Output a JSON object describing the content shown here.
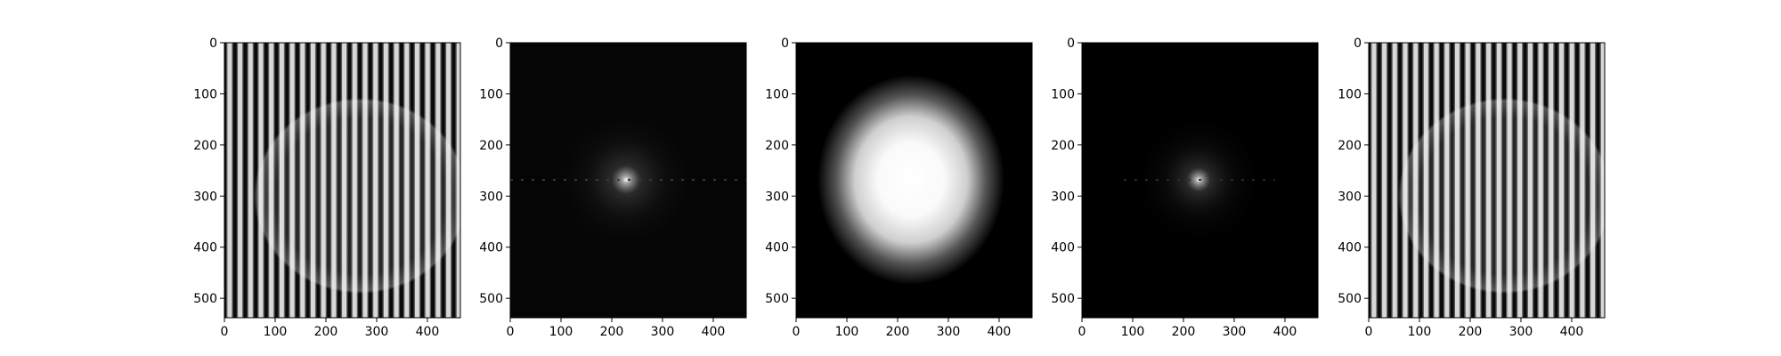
{
  "figure": {
    "background": "#ffffff",
    "panels": [
      {
        "name": "sinusoidal-stripe-image",
        "description_keyword": "vertical stripes with bright circle"
      },
      {
        "name": "fft-magnitude-spectrum",
        "description_keyword": "log spectrum"
      },
      {
        "name": "gaussian-filter-mask",
        "description_keyword": "gaussian blob"
      },
      {
        "name": "filtered-spectrum",
        "description_keyword": "masked spectrum"
      },
      {
        "name": "reconstructed-image",
        "description_keyword": "vertical stripes with bright circle"
      }
    ]
  },
  "axes": {
    "x_ticks": [
      "0",
      "100",
      "200",
      "300",
      "400"
    ],
    "y_ticks": [
      "0",
      "100",
      "200",
      "300",
      "400",
      "500"
    ],
    "x_range": [
      0,
      465
    ],
    "y_range": [
      0,
      538
    ]
  }
}
